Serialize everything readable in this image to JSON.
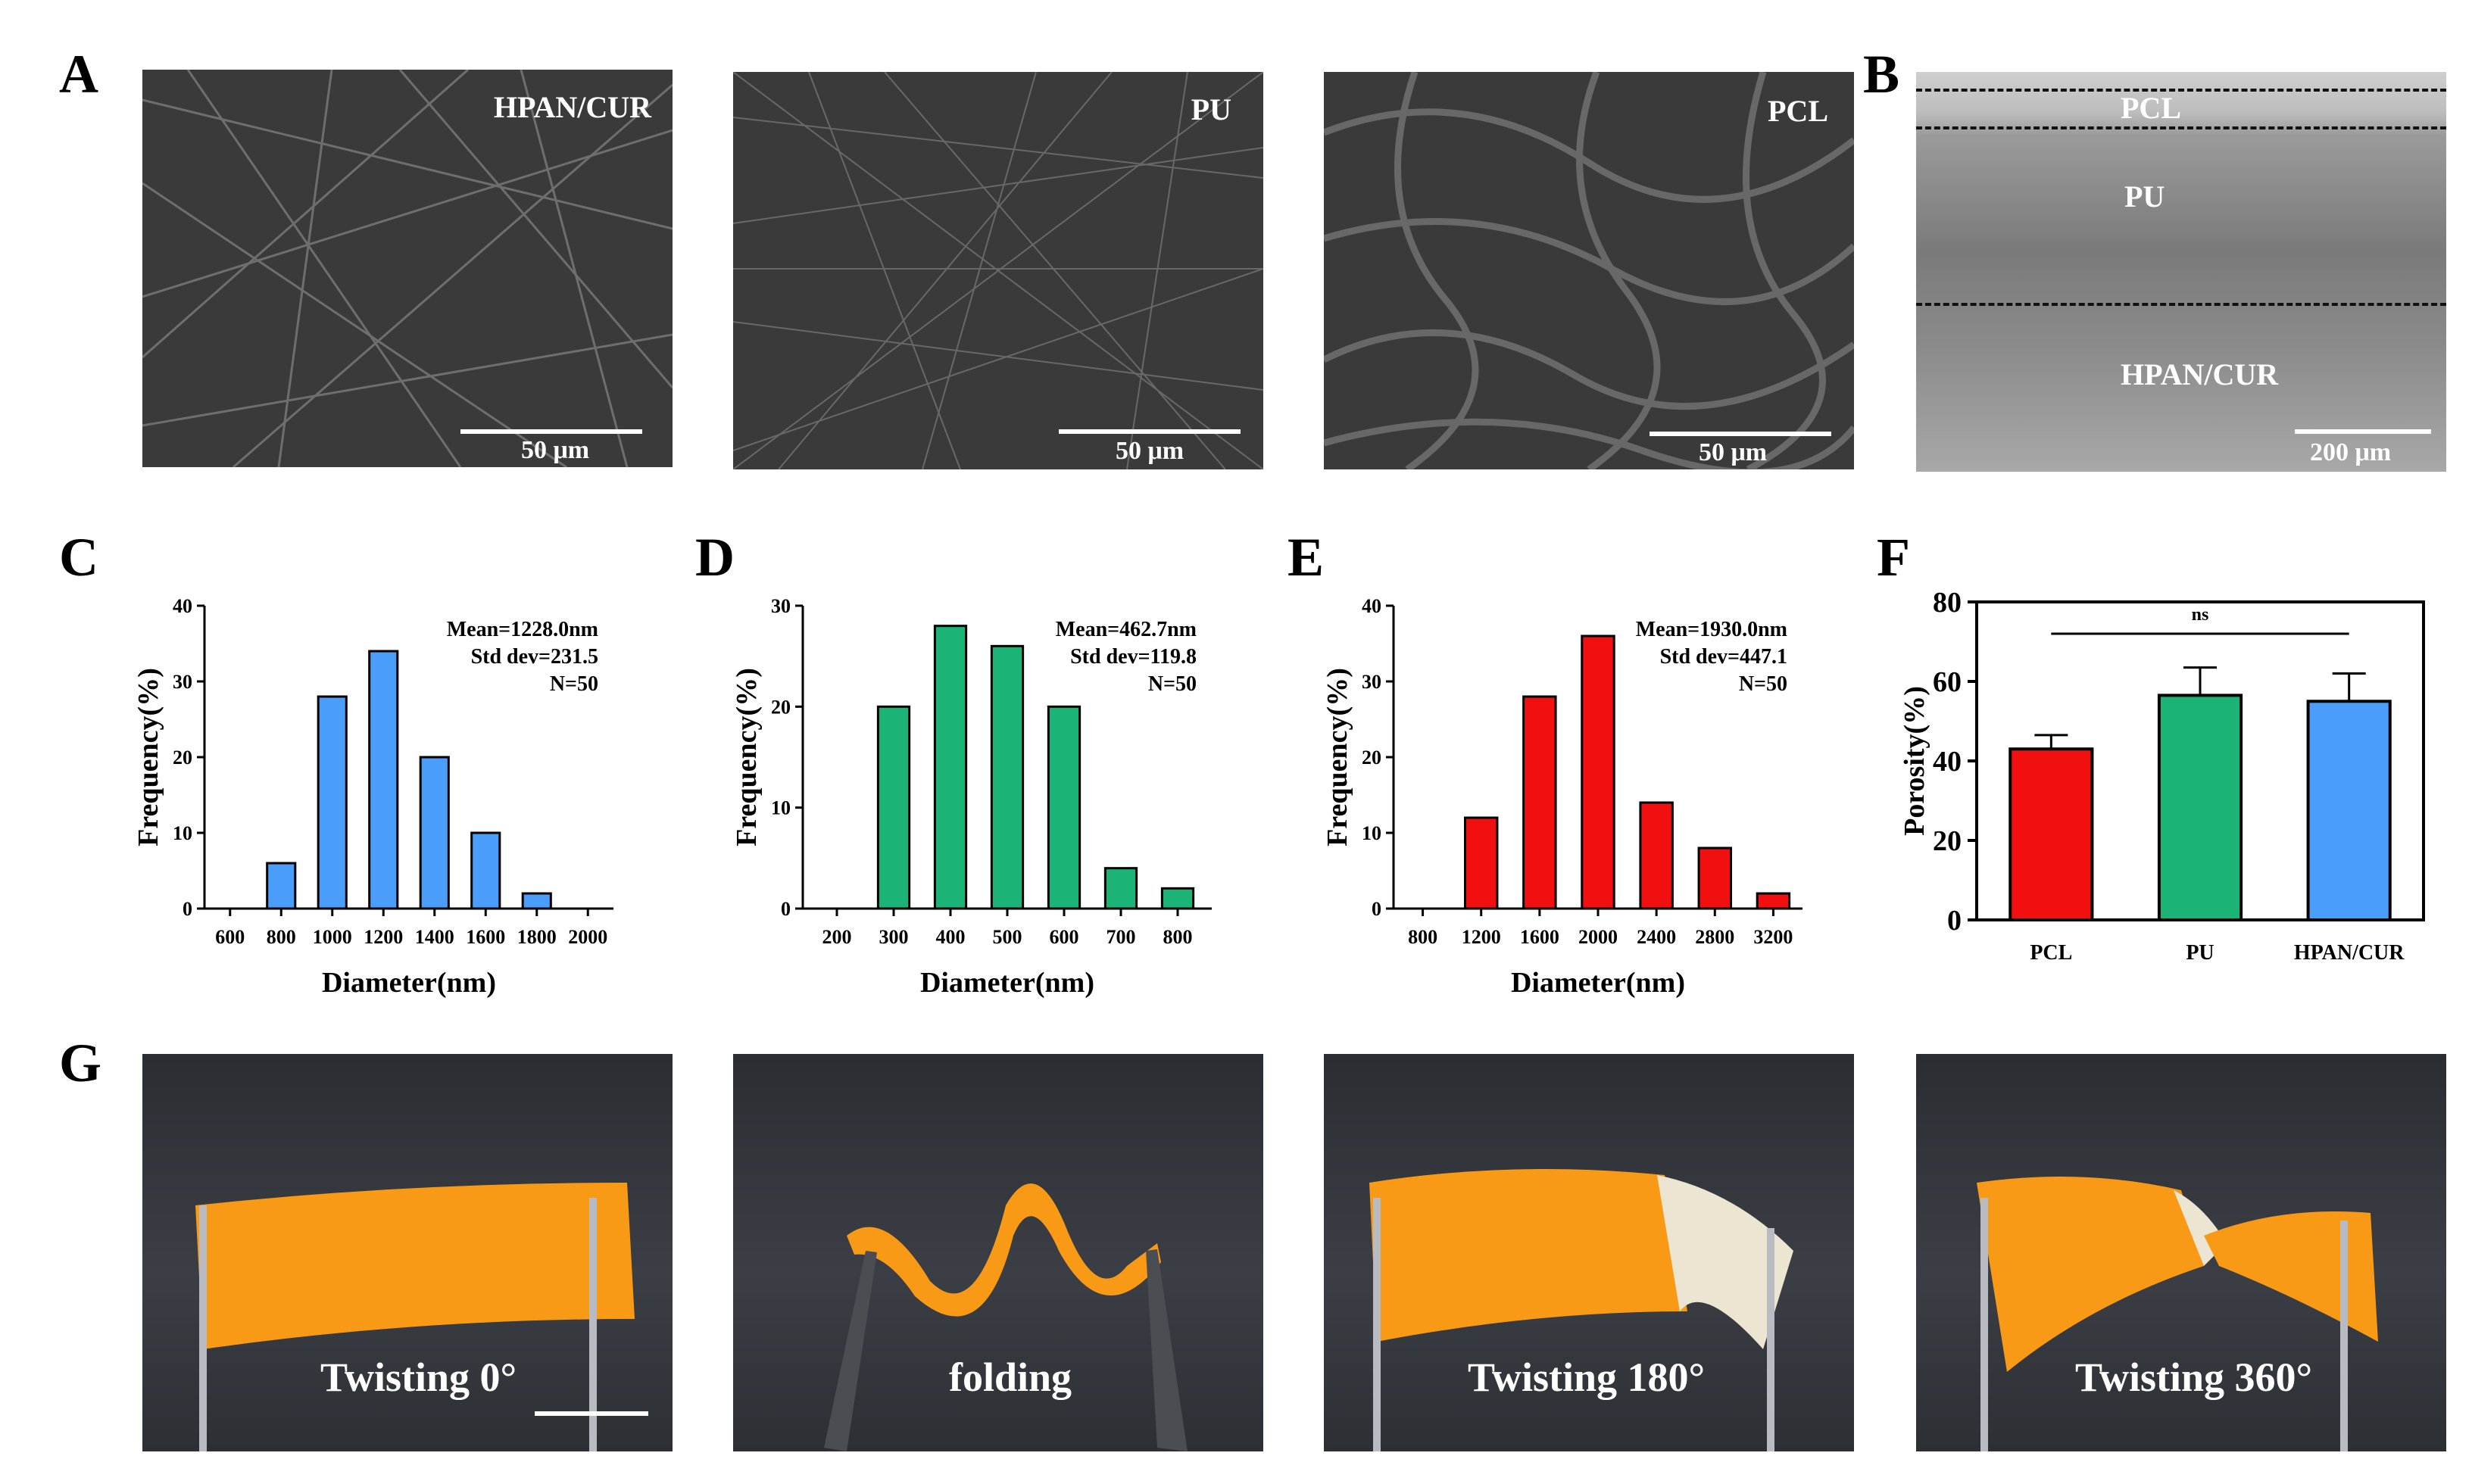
{
  "panels": {
    "A": {
      "label": "A",
      "images": [
        {
          "label": "HPAN/CUR",
          "scale": "50 μm"
        },
        {
          "label": "PU",
          "scale": "50 μm"
        },
        {
          "label": "PCL",
          "scale": "50 μm"
        }
      ]
    },
    "B": {
      "label": "B",
      "layers": [
        "PCL",
        "PU",
        "HPAN/CUR"
      ],
      "scale": "200 μm"
    },
    "C": {
      "label": "C"
    },
    "D": {
      "label": "D"
    },
    "E": {
      "label": "E"
    },
    "F": {
      "label": "F"
    },
    "G": {
      "label": "G",
      "images": [
        {
          "caption": "Twisting 0°"
        },
        {
          "caption": "folding"
        },
        {
          "caption": "Twisting 180°"
        },
        {
          "caption": "Twisting 360°"
        }
      ]
    }
  },
  "chart_data": [
    {
      "id": "C",
      "type": "bar",
      "color": "#4a9df8",
      "xlabel": "Diameter(nm)",
      "ylabel": "Frequency(%)",
      "ylim": [
        0,
        40
      ],
      "yticks": [
        0,
        10,
        20,
        30,
        40
      ],
      "tick_labels": [
        "600",
        "800",
        "1000",
        "1200",
        "1400",
        "1600",
        "1800",
        "2000"
      ],
      "bar_centers": [
        800,
        1000,
        1200,
        1400,
        1600,
        1800
      ],
      "values": [
        6,
        28,
        34,
        20,
        10,
        2
      ],
      "xrange": [
        500,
        2100
      ],
      "stats": [
        "Mean=1228.0nm",
        "Std dev=231.5",
        "N=50"
      ]
    },
    {
      "id": "D",
      "type": "bar",
      "color": "#1cb376",
      "xlabel": "Diameter(nm)",
      "ylabel": "Frequency(%)",
      "ylim": [
        0,
        30
      ],
      "yticks": [
        0,
        10,
        20,
        30
      ],
      "tick_labels": [
        "200",
        "300",
        "400",
        "500",
        "600",
        "700",
        "800"
      ],
      "bar_centers": [
        300,
        400,
        500,
        600,
        700,
        800
      ],
      "values": [
        20,
        28,
        26,
        20,
        4,
        2
      ],
      "xrange": [
        140,
        860
      ],
      "stats": [
        "Mean=462.7nm",
        "Std dev=119.8",
        "N=50"
      ]
    },
    {
      "id": "E",
      "type": "bar",
      "color": "#f10f0f",
      "xlabel": "Diameter(nm)",
      "ylabel": "Frequency(%)",
      "ylim": [
        0,
        40
      ],
      "yticks": [
        0,
        10,
        20,
        30,
        40
      ],
      "tick_labels": [
        "800",
        "1200",
        "1600",
        "2000",
        "2400",
        "2800",
        "3200"
      ],
      "bar_centers": [
        1200,
        1600,
        2000,
        2400,
        2800,
        3200
      ],
      "values": [
        12,
        28,
        36,
        14,
        8,
        2
      ],
      "xrange": [
        600,
        3400
      ],
      "stats": [
        "Mean=1930.0nm",
        "Std dev=447.1",
        "N=50"
      ]
    },
    {
      "id": "F",
      "type": "bar",
      "xlabel": "",
      "ylabel": "Porosity(%)",
      "ylim": [
        0,
        80
      ],
      "yticks": [
        0,
        20,
        40,
        60,
        80
      ],
      "categories": [
        "PCL",
        "PU",
        "HPAN/CUR"
      ],
      "values": [
        43,
        56.5,
        55
      ],
      "errors": [
        3.5,
        7,
        7
      ],
      "colors": [
        "#f10f0f",
        "#1cb376",
        "#4a9df8"
      ],
      "significance": "ns"
    }
  ]
}
